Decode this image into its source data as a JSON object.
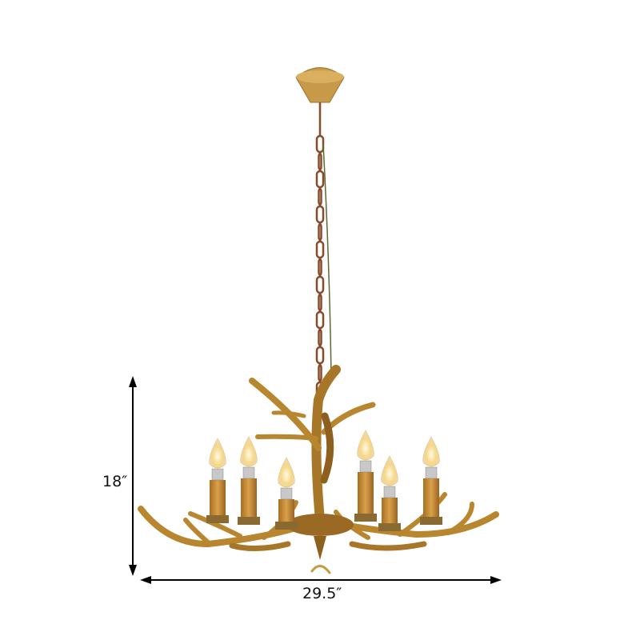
{
  "product": {
    "subject": "antler-chandelier",
    "colors": {
      "antler": "#b8862e",
      "antler_dark": "#7a5418",
      "candle_sleeve": "#c98f3a",
      "chain": "#8a4a2a",
      "bulb_glow": "#fff2c8"
    },
    "candle_count": 6
  },
  "dimensions": {
    "height_label": "18″",
    "width_label": "29.5″"
  }
}
